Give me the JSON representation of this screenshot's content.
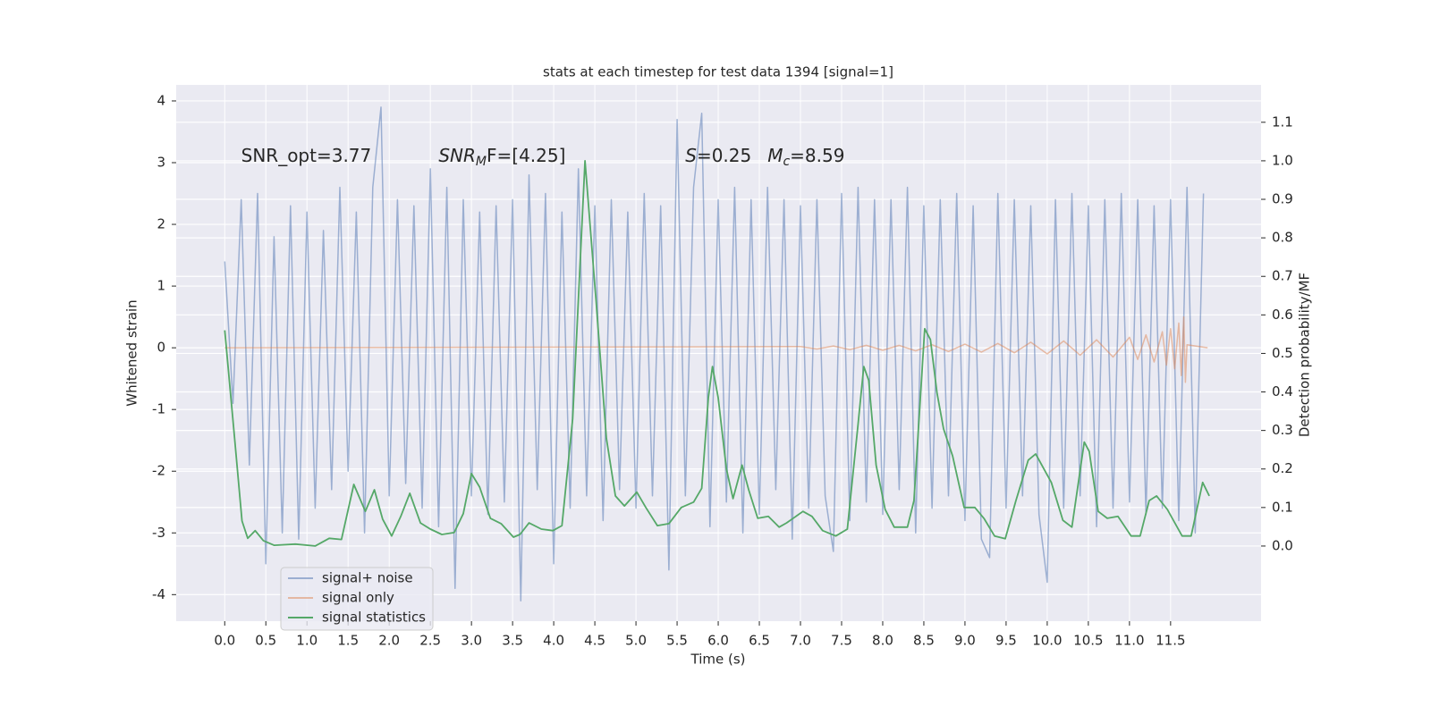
{
  "chart_data": {
    "type": "line",
    "title": "stats at each timestep for test data 1394 [signal=1]",
    "x_label": "Time (s)",
    "y_label": "Whitened strain",
    "y2_label": "Detection probability/MF",
    "grid": true,
    "legend": "lower left",
    "background": "#eaeaf2",
    "xlim": [
      -0.59,
      12.6
    ],
    "ylim": [
      -4.43,
      4.26
    ],
    "y2lim": [
      -0.195,
      1.197
    ],
    "xticks": [
      {
        "value": 0,
        "label": "0.0"
      },
      0.5,
      {
        "value": 1,
        "label": "1.0"
      },
      1.5,
      {
        "value": 2,
        "label": "2.0"
      },
      2.5,
      {
        "value": 3,
        "label": "3.0"
      },
      3.5,
      {
        "value": 4,
        "label": "4.0"
      },
      4.5,
      {
        "value": 5,
        "label": "5.0"
      },
      5.5,
      {
        "value": 6,
        "label": "6.0"
      },
      6.5,
      {
        "value": 7,
        "label": "7.0"
      },
      7.5,
      {
        "value": 8,
        "label": "8.0"
      },
      8.5,
      {
        "value": 9,
        "label": "9.0"
      },
      9.5,
      {
        "value": 10,
        "label": "10.0"
      },
      10.5,
      {
        "value": 11,
        "label": "11.0"
      },
      11.5
    ],
    "yticks": [
      -4,
      -3,
      -2,
      -1,
      0,
      1,
      2,
      3,
      4
    ],
    "y2ticks": [
      {
        "value": 0,
        "label": "0.0"
      },
      0.1,
      0.2,
      0.3,
      0.4,
      0.5,
      0.6,
      0.7,
      0.8,
      0.9,
      {
        "value": 1,
        "label": "1.0"
      },
      1.1
    ],
    "annotations": [
      {
        "main": "SNR_opt=3.77",
        "x": 0.2,
        "y": 3.1
      },
      {
        "main": "SNR",
        "sub": "M",
        "tail": "F=[4.25]",
        "x": 2.6,
        "y": 3.1
      },
      {
        "main": "S",
        "tail": "=0.25",
        "x": 5.6,
        "y": 3.1
      },
      {
        "main": "M",
        "sub": "c",
        "tail": "=8.59",
        "x": 6.6,
        "y": 3.1
      }
    ],
    "series": [
      {
        "name": "signal+ noise",
        "color": "#4c72b0",
        "axis": "y",
        "x": [
          0.0,
          0.1,
          0.2,
          0.3,
          0.4,
          0.5,
          0.6,
          0.7,
          0.8,
          0.9,
          1.0,
          1.1,
          1.2,
          1.3,
          1.4,
          1.5,
          1.6,
          1.7,
          1.8,
          1.9,
          2.0,
          2.1,
          2.2,
          2.3,
          2.4,
          2.5,
          2.6,
          2.7,
          2.8,
          2.9,
          3.0,
          3.1,
          3.2,
          3.3,
          3.4,
          3.5,
          3.6,
          3.7,
          3.8,
          3.9,
          4.0,
          4.1,
          4.2,
          4.3,
          4.4,
          4.5,
          4.6,
          4.7,
          4.8,
          4.9,
          5.0,
          5.1,
          5.2,
          5.3,
          5.4,
          5.5,
          5.6,
          5.7,
          5.8,
          5.9,
          6.0,
          6.1,
          6.2,
          6.3,
          6.4,
          6.5,
          6.6,
          6.7,
          6.8,
          6.9,
          7.0,
          7.1,
          7.2,
          7.3,
          7.4,
          7.5,
          7.6,
          7.7,
          7.8,
          7.9,
          8.0,
          8.1,
          8.2,
          8.3,
          8.4,
          8.5,
          8.6,
          8.7,
          8.8,
          8.9,
          9.0,
          9.1,
          9.2,
          9.3,
          9.4,
          9.5,
          9.6,
          9.7,
          9.8,
          9.9,
          10.0,
          10.1,
          10.2,
          10.3,
          10.4,
          10.5,
          10.6,
          10.7,
          10.8,
          10.9,
          11.0,
          11.1,
          11.2,
          11.3,
          11.4,
          11.5,
          11.6,
          11.7,
          11.8,
          11.9
        ],
        "values": [
          1.4,
          -0.9,
          2.4,
          -1.9,
          2.5,
          -3.5,
          1.8,
          -3.0,
          2.3,
          -3.1,
          2.2,
          -2.6,
          1.9,
          -2.3,
          2.6,
          -2.0,
          2.2,
          -3.0,
          2.6,
          3.9,
          -2.4,
          2.4,
          -2.2,
          2.3,
          -2.6,
          2.9,
          -2.9,
          2.6,
          -3.9,
          2.4,
          -2.4,
          2.2,
          -2.7,
          2.3,
          -2.5,
          2.4,
          -4.1,
          2.8,
          -2.3,
          2.5,
          -3.5,
          2.2,
          -2.6,
          2.9,
          -2.4,
          2.3,
          -2.8,
          2.4,
          -2.3,
          2.2,
          -2.6,
          2.5,
          -2.4,
          2.3,
          -3.6,
          3.7,
          -2.4,
          2.6,
          3.8,
          -2.9,
          2.4,
          -2.5,
          2.6,
          -3.0,
          2.4,
          -2.7,
          2.6,
          -2.3,
          2.4,
          -3.1,
          2.3,
          -2.6,
          2.4,
          -2.4,
          -3.3,
          2.5,
          -2.8,
          2.6,
          -2.5,
          2.4,
          -2.7,
          2.4,
          -2.3,
          2.6,
          -3.0,
          2.3,
          -2.6,
          2.4,
          -2.4,
          2.5,
          -2.8,
          2.3,
          -3.1,
          -3.4,
          2.5,
          -2.6,
          2.4,
          -2.4,
          2.3,
          -2.7,
          -3.8,
          2.4,
          -2.6,
          2.5,
          -2.4,
          2.3,
          -2.9,
          2.4,
          -2.6,
          2.5,
          -2.5,
          2.4,
          -2.7,
          2.3,
          -2.6,
          2.4,
          -2.8,
          2.6,
          -3.0,
          2.5
        ]
      },
      {
        "name": "signal only",
        "color": "#dd8452",
        "axis": "y",
        "x": [
          0,
          7.0,
          7.2,
          7.4,
          7.6,
          7.8,
          8.0,
          8.2,
          8.4,
          8.6,
          8.8,
          9.0,
          9.2,
          9.4,
          9.6,
          9.8,
          10.0,
          10.2,
          10.4,
          10.6,
          10.8,
          11.0,
          11.1,
          11.2,
          11.3,
          11.4,
          11.45,
          11.5,
          11.55,
          11.6,
          11.63,
          11.66,
          11.68,
          11.7,
          11.95
        ],
        "values": [
          0,
          0.02,
          -0.02,
          0.03,
          -0.03,
          0.04,
          -0.04,
          0.04,
          -0.05,
          0.05,
          -0.06,
          0.06,
          -0.07,
          0.07,
          -0.08,
          0.09,
          -0.1,
          0.11,
          -0.12,
          0.13,
          -0.15,
          0.17,
          -0.19,
          0.21,
          -0.23,
          0.26,
          -0.28,
          0.31,
          -0.34,
          0.4,
          -0.45,
          0.5,
          -0.56,
          0.05,
          0
        ]
      },
      {
        "name": "signal statistics",
        "color": "#55a868",
        "axis": "y2",
        "x": [
          0,
          0.12,
          0.21,
          0.28,
          0.37,
          0.47,
          0.6,
          0.86,
          1.1,
          1.27,
          1.42,
          1.57,
          1.71,
          1.82,
          1.92,
          2.03,
          2.14,
          2.25,
          2.38,
          2.5,
          2.64,
          2.79,
          2.9,
          3.0,
          3.1,
          3.23,
          3.36,
          3.51,
          3.59,
          3.7,
          3.85,
          3.99,
          4.1,
          4.23,
          4.38,
          4.51,
          4.64,
          4.75,
          4.86,
          5.01,
          5.12,
          5.26,
          5.4,
          5.55,
          5.7,
          5.8,
          5.88,
          5.93,
          6.0,
          6.1,
          6.18,
          6.29,
          6.37,
          6.48,
          6.61,
          6.74,
          6.83,
          7.03,
          7.14,
          7.27,
          7.43,
          7.57,
          7.7,
          7.77,
          7.83,
          7.92,
          8.03,
          8.14,
          8.3,
          8.38,
          8.51,
          8.58,
          8.66,
          8.74,
          8.85,
          8.99,
          9.12,
          9.23,
          9.36,
          9.49,
          9.62,
          9.77,
          9.86,
          10.05,
          10.19,
          10.3,
          10.45,
          10.51,
          10.62,
          10.73,
          10.86,
          11.02,
          11.13,
          11.24,
          11.33,
          11.46,
          11.64,
          11.75,
          11.89,
          11.97
        ],
        "values": [
          0.56,
          0.28,
          0.065,
          0.02,
          0.04,
          0.014,
          0.002,
          0.005,
          0,
          0.02,
          0.017,
          0.16,
          0.09,
          0.146,
          0.07,
          0.026,
          0.077,
          0.137,
          0.06,
          0.044,
          0.03,
          0.035,
          0.084,
          0.188,
          0.153,
          0.072,
          0.058,
          0.023,
          0.03,
          0.06,
          0.044,
          0.04,
          0.053,
          0.33,
          1.0,
          0.65,
          0.28,
          0.13,
          0.104,
          0.14,
          0.1,
          0.053,
          0.058,
          0.1,
          0.114,
          0.15,
          0.385,
          0.466,
          0.385,
          0.2,
          0.123,
          0.21,
          0.146,
          0.072,
          0.077,
          0.049,
          0.06,
          0.09,
          0.077,
          0.04,
          0.026,
          0.044,
          0.316,
          0.466,
          0.43,
          0.21,
          0.095,
          0.049,
          0.049,
          0.118,
          0.564,
          0.536,
          0.397,
          0.304,
          0.234,
          0.1,
          0.1,
          0.072,
          0.026,
          0.019,
          0.118,
          0.223,
          0.239,
          0.165,
          0.067,
          0.049,
          0.27,
          0.246,
          0.09,
          0.072,
          0.077,
          0.026,
          0.026,
          0.118,
          0.13,
          0.095,
          0.026,
          0.026,
          0.165,
          0.13
        ]
      }
    ]
  }
}
